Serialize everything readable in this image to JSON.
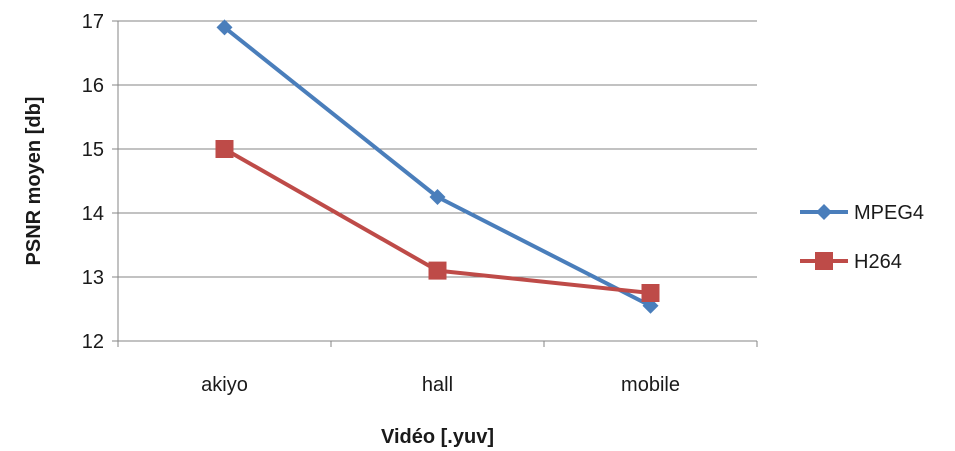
{
  "chart_data": {
    "type": "line",
    "categories": [
      "akiyo",
      "hall",
      "mobile"
    ],
    "series": [
      {
        "name": "MPEG4",
        "values": [
          16.9,
          14.25,
          12.55
        ],
        "color": "#4a7ebb",
        "marker": "diamond"
      },
      {
        "name": "H264",
        "values": [
          15.0,
          13.1,
          12.75
        ],
        "color": "#be4b48",
        "marker": "square"
      }
    ],
    "title": "",
    "xlabel": "Vidéo [.yuv]",
    "ylabel": "PSNR moyen [db]",
    "ylim": [
      12,
      17
    ],
    "yticks": [
      12,
      13,
      14,
      15,
      16,
      17
    ],
    "grid": true,
    "legend_position": "right",
    "colors": {
      "grid": "#868686",
      "axis": "#868686"
    }
  }
}
